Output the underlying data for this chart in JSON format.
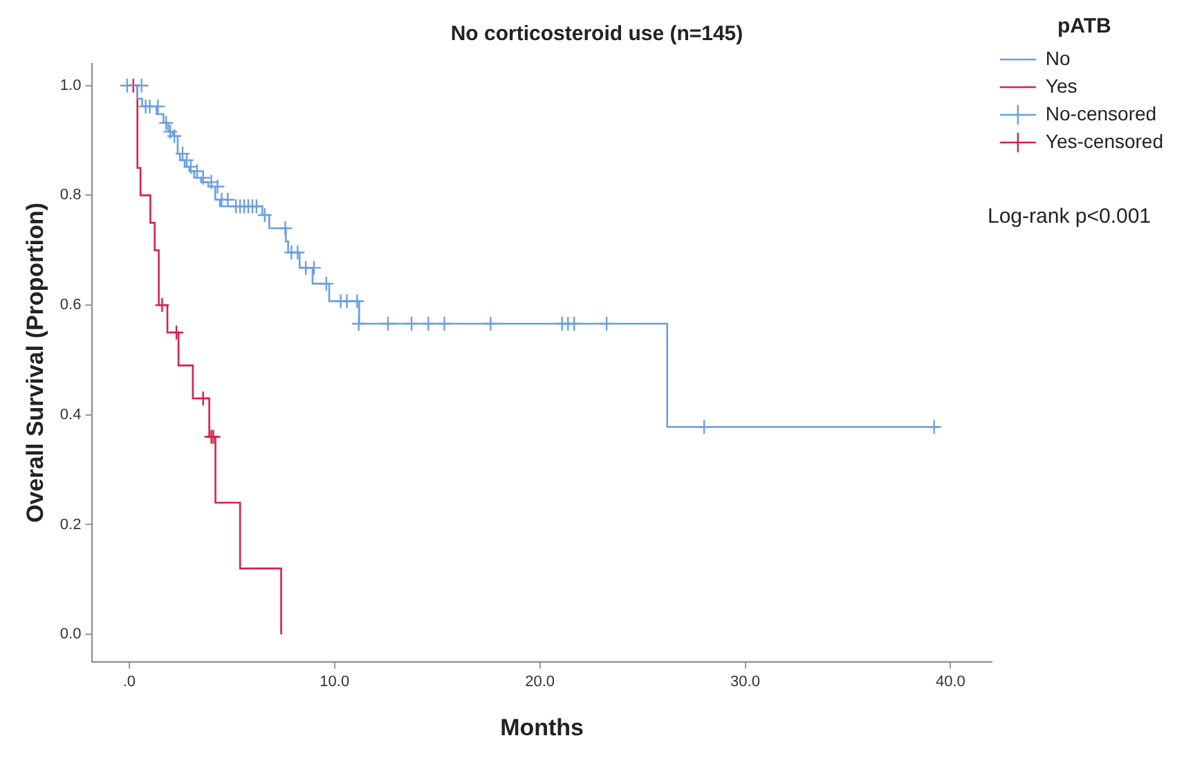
{
  "chart_data": {
    "type": "step",
    "title": "No corticosteroid use (n=145)",
    "xlabel": "Months",
    "ylabel": "Overall Survival (Proportion)",
    "legend_title": "pATB",
    "legend": "right",
    "grid": false,
    "xlim": [
      -1.8,
      42
    ],
    "xticks": [
      {
        "value": 0,
        "label": ".0"
      },
      {
        "value": 10,
        "label": "10.0"
      },
      {
        "value": 20,
        "label": "20.0"
      },
      {
        "value": 30,
        "label": "30.0"
      },
      {
        "value": 40,
        "label": "40.0"
      }
    ],
    "ylim": [
      -0.05,
      1.04
    ],
    "yticks": [
      {
        "value": 0,
        "label": "0.0"
      },
      {
        "value": 0.2,
        "label": "0.2"
      },
      {
        "value": 0.4,
        "label": "0.4"
      },
      {
        "value": 0.6,
        "label": "0.6"
      },
      {
        "value": 0.8,
        "label": "0.8"
      },
      {
        "value": 1,
        "label": "1.0"
      }
    ],
    "annotations": [
      "Log-rank p<0.001"
    ],
    "series": [
      {
        "name": "No",
        "type": "step",
        "color": "#6a9fe0",
        "x": [
          0,
          0.4,
          0.63,
          1.33,
          1.67,
          1.9,
          2.13,
          2.36,
          2.47,
          2.7,
          2.93,
          3.16,
          3.5,
          3.85,
          4.19,
          4.42,
          5.0,
          6.48,
          6.82,
          7.63,
          7.74,
          8.3,
          8.93,
          9.74,
          11.2,
          26.2,
          39.5
        ],
        "values": [
          1.0,
          0.976,
          0.962,
          0.948,
          0.932,
          0.916,
          0.908,
          0.876,
          0.864,
          0.852,
          0.844,
          0.832,
          0.824,
          0.816,
          0.792,
          0.78,
          0.78,
          0.764,
          0.74,
          0.716,
          0.696,
          0.668,
          0.639,
          0.607,
          0.566,
          0.378,
          0.378
        ]
      },
      {
        "name": "Yes",
        "type": "step",
        "color": "#d6204a",
        "x": [
          0,
          0.4,
          0.55,
          1.03,
          1.24,
          1.44,
          1.86,
          2.4,
          3.1,
          3.9,
          4.2,
          5.4,
          7.4
        ],
        "values": [
          1.0,
          0.85,
          0.8,
          0.75,
          0.7,
          0.6,
          0.55,
          0.49,
          0.43,
          0.36,
          0.24,
          0.12,
          0.0
        ]
      },
      {
        "name": "No-censored",
        "type": "scatter",
        "marker": "cross",
        "color": "#6a9fe0",
        "x": [
          -0.1,
          0.6,
          0.8,
          1.0,
          1.4,
          1.8,
          2.0,
          2.2,
          2.6,
          2.8,
          3.0,
          3.3,
          3.6,
          4.0,
          4.3,
          4.5,
          4.8,
          5.2,
          5.4,
          5.6,
          5.8,
          6.0,
          6.2,
          6.6,
          7.6,
          7.9,
          8.2,
          8.6,
          9.0,
          9.6,
          10.3,
          10.6,
          11.1,
          11.18,
          12.6,
          13.75,
          14.57,
          15.35,
          17.6,
          21.08,
          21.37,
          21.67,
          23.25,
          28.0,
          39.2
        ],
        "values": [
          1.0,
          1.0,
          0.962,
          0.962,
          0.962,
          0.932,
          0.916,
          0.908,
          0.876,
          0.864,
          0.852,
          0.844,
          0.832,
          0.824,
          0.816,
          0.792,
          0.792,
          0.78,
          0.78,
          0.78,
          0.78,
          0.78,
          0.78,
          0.764,
          0.74,
          0.696,
          0.696,
          0.668,
          0.668,
          0.639,
          0.607,
          0.607,
          0.607,
          0.566,
          0.566,
          0.566,
          0.566,
          0.566,
          0.566,
          0.566,
          0.566,
          0.566,
          0.566,
          0.378,
          0.378
        ]
      },
      {
        "name": "Yes-censored",
        "type": "scatter",
        "marker": "cross",
        "color": "#d6204a",
        "x": [
          0.2,
          1.6,
          2.3,
          3.6,
          4.0,
          4.1
        ],
        "values": [
          1.0,
          0.6,
          0.55,
          0.43,
          0.36,
          0.36
        ]
      }
    ]
  }
}
